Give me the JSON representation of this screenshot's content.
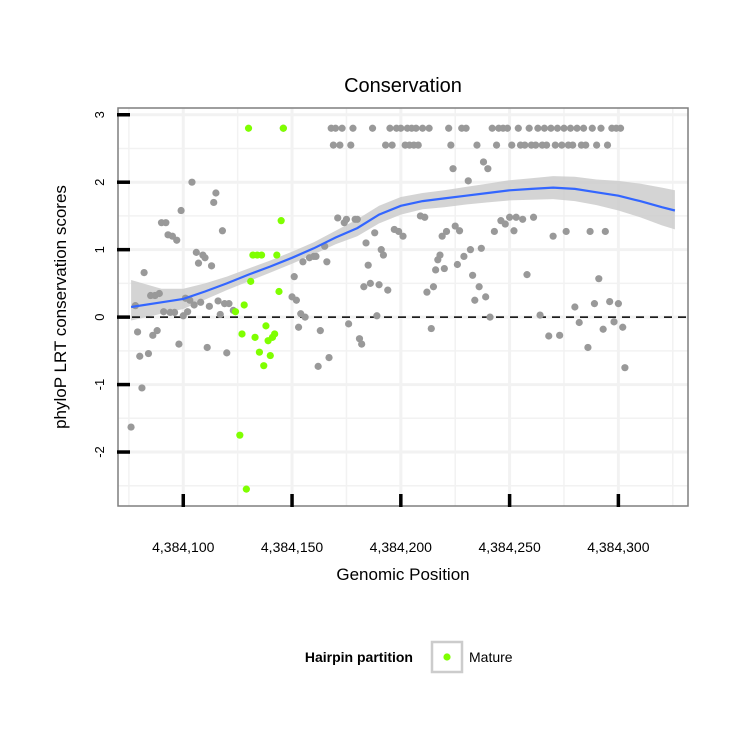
{
  "chart_data": {
    "type": "scatter",
    "title": "Conservation",
    "xlabel": "Genomic Position",
    "ylabel": "phyloP LRT conservation scores",
    "xlim": [
      4384070,
      4384332
    ],
    "ylim": [
      -2.8,
      3.1
    ],
    "x_ticks": [
      4384100,
      4384150,
      4384200,
      4384250,
      4384300
    ],
    "x_tick_labels": [
      "4,384,100",
      "4,384,150",
      "4,384,200",
      "4,384,250",
      "4,384,300"
    ],
    "y_ticks": [
      -2,
      -1,
      0,
      1,
      2,
      3
    ],
    "y_tick_labels": [
      "-2",
      "-1",
      "0",
      "1",
      "2",
      "3"
    ],
    "grid": true,
    "reference_line": {
      "y": 0,
      "style": "dashed",
      "color": "#000000"
    },
    "legend": {
      "title": "Hairpin partition",
      "position": "bottom",
      "entries": [
        "Mature"
      ]
    },
    "colors": {
      "other": "#999999",
      "mature": "#7fff00",
      "smooth": "#3366ff",
      "band": "#cccccc"
    },
    "series": [
      {
        "points": [
          [
            4384076,
            -1.63
          ],
          [
            4384078,
            0.17
          ],
          [
            4384079,
            -0.22
          ],
          [
            4384080,
            -0.58
          ],
          [
            4384081,
            -1.05
          ],
          [
            4384082,
            0.66
          ],
          [
            4384084,
            -0.54
          ],
          [
            4384085,
            0.32
          ],
          [
            4384086,
            -0.27
          ],
          [
            4384087,
            0.32
          ],
          [
            4384088,
            -0.2
          ],
          [
            4384089,
            0.35
          ],
          [
            4384090,
            1.4
          ],
          [
            4384091,
            0.08
          ],
          [
            4384092,
            1.4
          ],
          [
            4384093,
            1.22
          ],
          [
            4384094,
            0.07
          ],
          [
            4384095,
            1.2
          ],
          [
            4384096,
            0.07
          ],
          [
            4384097,
            1.14
          ],
          [
            4384098,
            -0.4
          ],
          [
            4384099,
            1.58
          ],
          [
            4384100,
            0.02
          ],
          [
            4384101,
            0.28
          ],
          [
            4384102,
            0.08
          ],
          [
            4384103,
            0.25
          ],
          [
            4384104,
            2.0
          ],
          [
            4384105,
            0.18
          ],
          [
            4384106,
            0.96
          ],
          [
            4384107,
            0.8
          ],
          [
            4384108,
            0.22
          ],
          [
            4384109,
            0.92
          ],
          [
            4384110,
            0.88
          ],
          [
            4384111,
            -0.45
          ],
          [
            4384112,
            0.16
          ],
          [
            4384113,
            0.76
          ],
          [
            4384114,
            1.7
          ],
          [
            4384115,
            1.84
          ],
          [
            4384116,
            0.24
          ],
          [
            4384117,
            0.04
          ],
          [
            4384118,
            1.28
          ],
          [
            4384119,
            0.2
          ],
          [
            4384120,
            -0.53
          ],
          [
            4384121,
            0.2
          ],
          [
            4384123,
            0.1
          ],
          [
            4384146,
            2.8
          ],
          [
            4384150,
            0.3
          ],
          [
            4384151,
            0.6
          ],
          [
            4384152,
            0.25
          ],
          [
            4384153,
            -0.15
          ],
          [
            4384154,
            0.05
          ],
          [
            4384155,
            0.82
          ],
          [
            4384156,
            0.0
          ],
          [
            4384158,
            0.88
          ],
          [
            4384160,
            0.9
          ],
          [
            4384161,
            0.9
          ],
          [
            4384162,
            -0.73
          ],
          [
            4384163,
            -0.2
          ],
          [
            4384165,
            1.05
          ],
          [
            4384166,
            0.82
          ],
          [
            4384167,
            -0.6
          ],
          [
            4384168,
            2.8
          ],
          [
            4384169,
            2.55
          ],
          [
            4384170,
            2.8
          ],
          [
            4384171,
            1.47
          ],
          [
            4384172,
            2.55
          ],
          [
            4384173,
            2.8
          ],
          [
            4384174,
            1.4
          ],
          [
            4384175,
            1.45
          ],
          [
            4384176,
            -0.1
          ],
          [
            4384177,
            2.55
          ],
          [
            4384178,
            2.8
          ],
          [
            4384179,
            1.45
          ],
          [
            4384180,
            1.45
          ],
          [
            4384181,
            -0.32
          ],
          [
            4384182,
            -0.4
          ],
          [
            4384183,
            0.45
          ],
          [
            4384184,
            1.1
          ],
          [
            4384185,
            0.77
          ],
          [
            4384186,
            0.5
          ],
          [
            4384187,
            2.8
          ],
          [
            4384188,
            1.25
          ],
          [
            4384189,
            0.02
          ],
          [
            4384190,
            0.48
          ],
          [
            4384191,
            1.0
          ],
          [
            4384192,
            0.92
          ],
          [
            4384193,
            2.55
          ],
          [
            4384194,
            0.4
          ],
          [
            4384195,
            2.8
          ],
          [
            4384196,
            2.55
          ],
          [
            4384197,
            1.3
          ],
          [
            4384198,
            2.8
          ],
          [
            4384199,
            1.27
          ],
          [
            4384200,
            2.8
          ],
          [
            4384201,
            1.2
          ],
          [
            4384202,
            2.55
          ],
          [
            4384203,
            2.8
          ],
          [
            4384204,
            2.55
          ],
          [
            4384205,
            2.8
          ],
          [
            4384206,
            2.55
          ],
          [
            4384207,
            2.8
          ],
          [
            4384208,
            2.55
          ],
          [
            4384209,
            1.5
          ],
          [
            4384210,
            2.8
          ],
          [
            4384211,
            1.48
          ],
          [
            4384212,
            0.37
          ],
          [
            4384213,
            2.8
          ],
          [
            4384214,
            -0.17
          ],
          [
            4384215,
            0.45
          ],
          [
            4384216,
            0.7
          ],
          [
            4384217,
            0.85
          ],
          [
            4384218,
            0.92
          ],
          [
            4384219,
            1.2
          ],
          [
            4384220,
            0.72
          ],
          [
            4384221,
            1.27
          ],
          [
            4384222,
            2.8
          ],
          [
            4384223,
            2.55
          ],
          [
            4384224,
            2.2
          ],
          [
            4384225,
            1.35
          ],
          [
            4384226,
            0.78
          ],
          [
            4384227,
            1.28
          ],
          [
            4384228,
            2.8
          ],
          [
            4384229,
            0.9
          ],
          [
            4384230,
            2.8
          ],
          [
            4384231,
            2.02
          ],
          [
            4384232,
            1.0
          ],
          [
            4384233,
            0.62
          ],
          [
            4384234,
            0.25
          ],
          [
            4384235,
            2.55
          ],
          [
            4384236,
            0.45
          ],
          [
            4384237,
            1.02
          ],
          [
            4384238,
            2.3
          ],
          [
            4384239,
            0.3
          ],
          [
            4384240,
            2.2
          ],
          [
            4384241,
            0.0
          ],
          [
            4384242,
            2.8
          ],
          [
            4384243,
            1.27
          ],
          [
            4384244,
            2.55
          ],
          [
            4384245,
            2.8
          ],
          [
            4384246,
            1.43
          ],
          [
            4384247,
            2.8
          ],
          [
            4384248,
            1.38
          ],
          [
            4384249,
            2.8
          ],
          [
            4384250,
            1.48
          ],
          [
            4384251,
            2.55
          ],
          [
            4384252,
            1.28
          ],
          [
            4384253,
            1.48
          ],
          [
            4384254,
            2.8
          ],
          [
            4384255,
            2.55
          ],
          [
            4384256,
            1.45
          ],
          [
            4384257,
            2.55
          ],
          [
            4384258,
            0.63
          ],
          [
            4384259,
            2.8
          ],
          [
            4384260,
            2.55
          ],
          [
            4384261,
            1.48
          ],
          [
            4384262,
            2.55
          ],
          [
            4384263,
            2.8
          ],
          [
            4384264,
            0.03
          ],
          [
            4384265,
            2.55
          ],
          [
            4384266,
            2.8
          ],
          [
            4384267,
            2.55
          ],
          [
            4384268,
            -0.28
          ],
          [
            4384269,
            2.8
          ],
          [
            4384270,
            1.2
          ],
          [
            4384271,
            2.55
          ],
          [
            4384272,
            2.8
          ],
          [
            4384273,
            -0.27
          ],
          [
            4384274,
            2.55
          ],
          [
            4384275,
            2.8
          ],
          [
            4384276,
            1.27
          ],
          [
            4384277,
            2.55
          ],
          [
            4384278,
            2.8
          ],
          [
            4384279,
            2.55
          ],
          [
            4384280,
            0.15
          ],
          [
            4384281,
            2.8
          ],
          [
            4384282,
            -0.08
          ],
          [
            4384283,
            2.55
          ],
          [
            4384284,
            2.8
          ],
          [
            4384285,
            2.55
          ],
          [
            4384286,
            -0.45
          ],
          [
            4384287,
            1.27
          ],
          [
            4384288,
            2.8
          ],
          [
            4384289,
            0.2
          ],
          [
            4384290,
            2.55
          ],
          [
            4384291,
            0.57
          ],
          [
            4384292,
            2.8
          ],
          [
            4384293,
            -0.18
          ],
          [
            4384294,
            1.27
          ],
          [
            4384295,
            2.55
          ],
          [
            4384296,
            0.23
          ],
          [
            4384297,
            2.8
          ],
          [
            4384298,
            -0.07
          ],
          [
            4384299,
            2.8
          ],
          [
            4384300,
            0.2
          ],
          [
            4384301,
            2.8
          ],
          [
            4384302,
            -0.15
          ],
          [
            4384303,
            -0.75
          ]
        ]
      },
      {
        "name": "Mature",
        "points": [
          [
            4384124,
            0.08
          ],
          [
            4384126,
            -1.75
          ],
          [
            4384127,
            -0.25
          ],
          [
            4384128,
            0.18
          ],
          [
            4384129,
            -2.55
          ],
          [
            4384130,
            2.8
          ],
          [
            4384131,
            0.53
          ],
          [
            4384132,
            0.92
          ],
          [
            4384133,
            -0.3
          ],
          [
            4384134,
            0.92
          ],
          [
            4384135,
            -0.52
          ],
          [
            4384136,
            0.92
          ],
          [
            4384137,
            -0.72
          ],
          [
            4384138,
            -0.13
          ],
          [
            4384139,
            -0.35
          ],
          [
            4384140,
            -0.57
          ],
          [
            4384141,
            -0.3
          ],
          [
            4384142,
            -0.25
          ],
          [
            4384143,
            0.92
          ],
          [
            4384144,
            0.38
          ],
          [
            4384145,
            1.43
          ],
          [
            4384146,
            2.8
          ]
        ]
      }
    ],
    "smooth": {
      "x": [
        4384076,
        4384090,
        4384100,
        4384110,
        4384120,
        4384130,
        4384140,
        4384150,
        4384160,
        4384170,
        4384180,
        4384190,
        4384200,
        4384210,
        4384220,
        4384230,
        4384240,
        4384250,
        4384260,
        4384270,
        4384280,
        4384290,
        4384300,
        4384310,
        4384320,
        4384326
      ],
      "y": [
        0.15,
        0.22,
        0.27,
        0.38,
        0.5,
        0.63,
        0.75,
        0.88,
        1.02,
        1.18,
        1.32,
        1.52,
        1.65,
        1.72,
        1.76,
        1.8,
        1.84,
        1.88,
        1.9,
        1.92,
        1.9,
        1.85,
        1.8,
        1.72,
        1.63,
        1.58
      ],
      "lower": [
        -0.05,
        0.05,
        0.12,
        0.26,
        0.4,
        0.53,
        0.66,
        0.79,
        0.93,
        1.08,
        1.2,
        1.39,
        1.52,
        1.6,
        1.63,
        1.67,
        1.7,
        1.73,
        1.74,
        1.75,
        1.72,
        1.66,
        1.58,
        1.48,
        1.36,
        1.3
      ],
      "upper": [
        0.55,
        0.42,
        0.42,
        0.5,
        0.6,
        0.72,
        0.84,
        0.97,
        1.11,
        1.28,
        1.45,
        1.65,
        1.78,
        1.84,
        1.88,
        1.93,
        1.98,
        2.03,
        2.06,
        2.09,
        2.08,
        2.04,
        2.02,
        1.98,
        1.92,
        1.88
      ]
    }
  }
}
